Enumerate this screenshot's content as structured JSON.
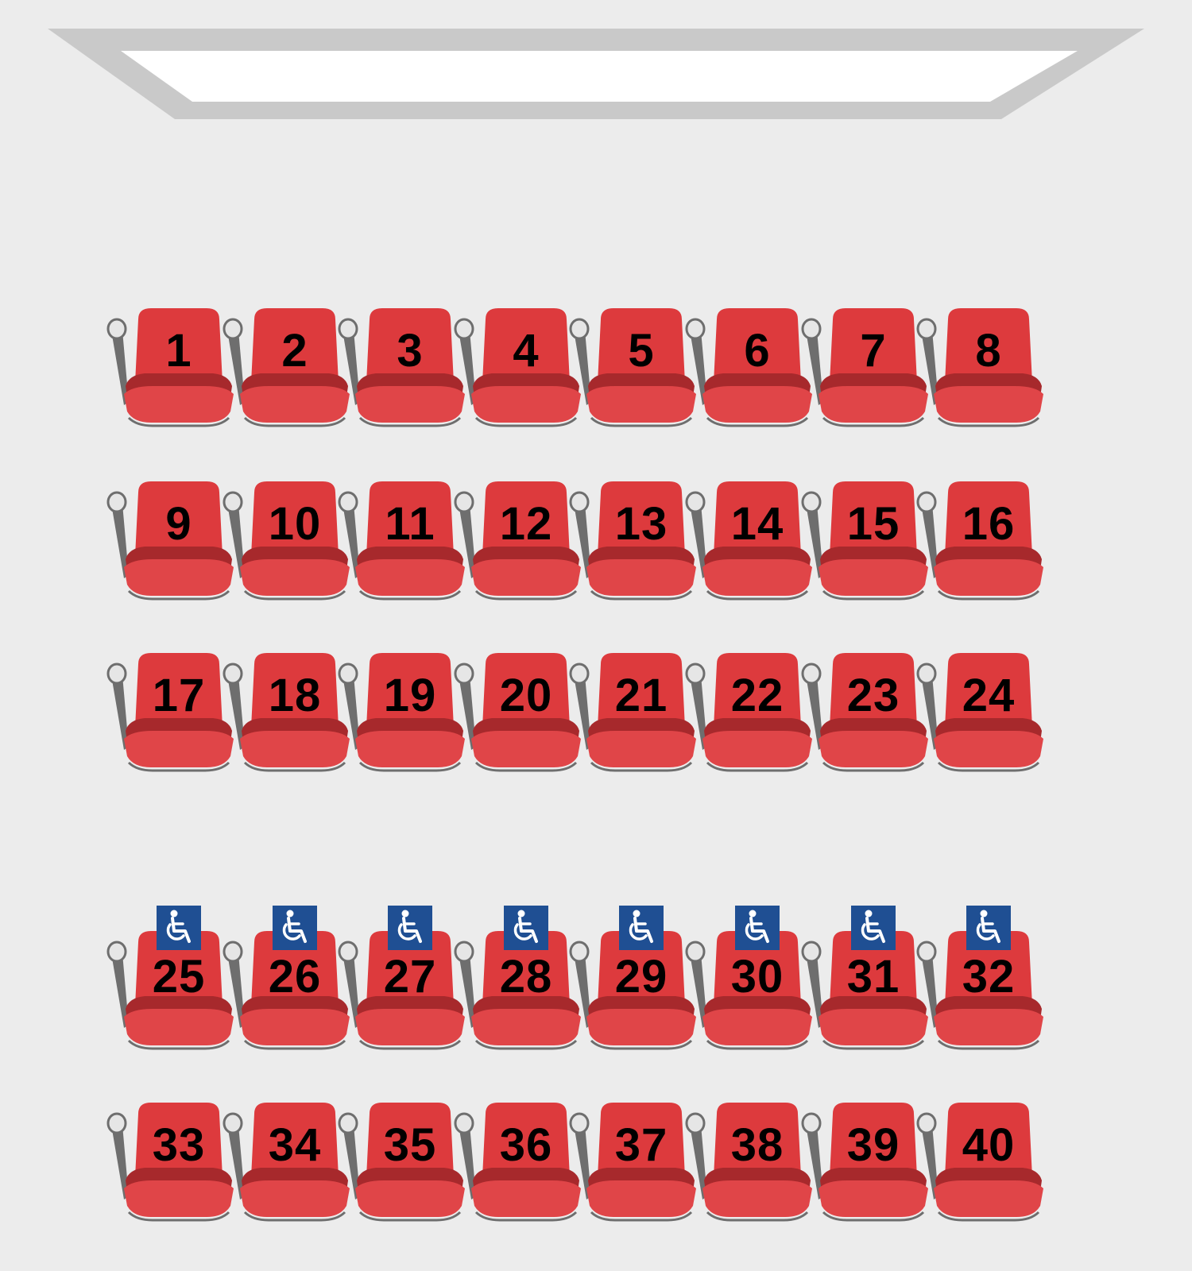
{
  "colors": {
    "background": "#ececec",
    "screen_frame": "#c9c9c9",
    "screen_surface": "#ffffff",
    "seat_back": "#dd3a3d",
    "seat_cushion": "#a7292c",
    "seat_front": "#e04548",
    "armrest": "#6e6e6e",
    "armrest_cap": "#e6e6e6",
    "accessible_badge": "#1f4f93",
    "seat_number": "#000000"
  },
  "seating": {
    "rows": [
      {
        "seats": [
          {
            "number": "1"
          },
          {
            "number": "2"
          },
          {
            "number": "3"
          },
          {
            "number": "4"
          },
          {
            "number": "5"
          },
          {
            "number": "6"
          },
          {
            "number": "7"
          },
          {
            "number": "8"
          }
        ]
      },
      {
        "seats": [
          {
            "number": "9"
          },
          {
            "number": "10"
          },
          {
            "number": "11"
          },
          {
            "number": "12"
          },
          {
            "number": "13"
          },
          {
            "number": "14"
          },
          {
            "number": "15"
          },
          {
            "number": "16"
          }
        ]
      },
      {
        "seats": [
          {
            "number": "17"
          },
          {
            "number": "18"
          },
          {
            "number": "19"
          },
          {
            "number": "20"
          },
          {
            "number": "21"
          },
          {
            "number": "22"
          },
          {
            "number": "23"
          },
          {
            "number": "24"
          }
        ]
      },
      {
        "accessible": true,
        "seats": [
          {
            "number": "25",
            "icon": "wheelchair-icon"
          },
          {
            "number": "26",
            "icon": "wheelchair-icon"
          },
          {
            "number": "27",
            "icon": "wheelchair-icon"
          },
          {
            "number": "28",
            "icon": "wheelchair-icon"
          },
          {
            "number": "29",
            "icon": "wheelchair-icon"
          },
          {
            "number": "30",
            "icon": "wheelchair-icon"
          },
          {
            "number": "31",
            "icon": "wheelchair-icon"
          },
          {
            "number": "32",
            "icon": "wheelchair-icon"
          }
        ]
      },
      {
        "seats": [
          {
            "number": "33"
          },
          {
            "number": "34"
          },
          {
            "number": "35"
          },
          {
            "number": "36"
          },
          {
            "number": "37"
          },
          {
            "number": "38"
          },
          {
            "number": "39"
          },
          {
            "number": "40"
          }
        ]
      }
    ]
  }
}
